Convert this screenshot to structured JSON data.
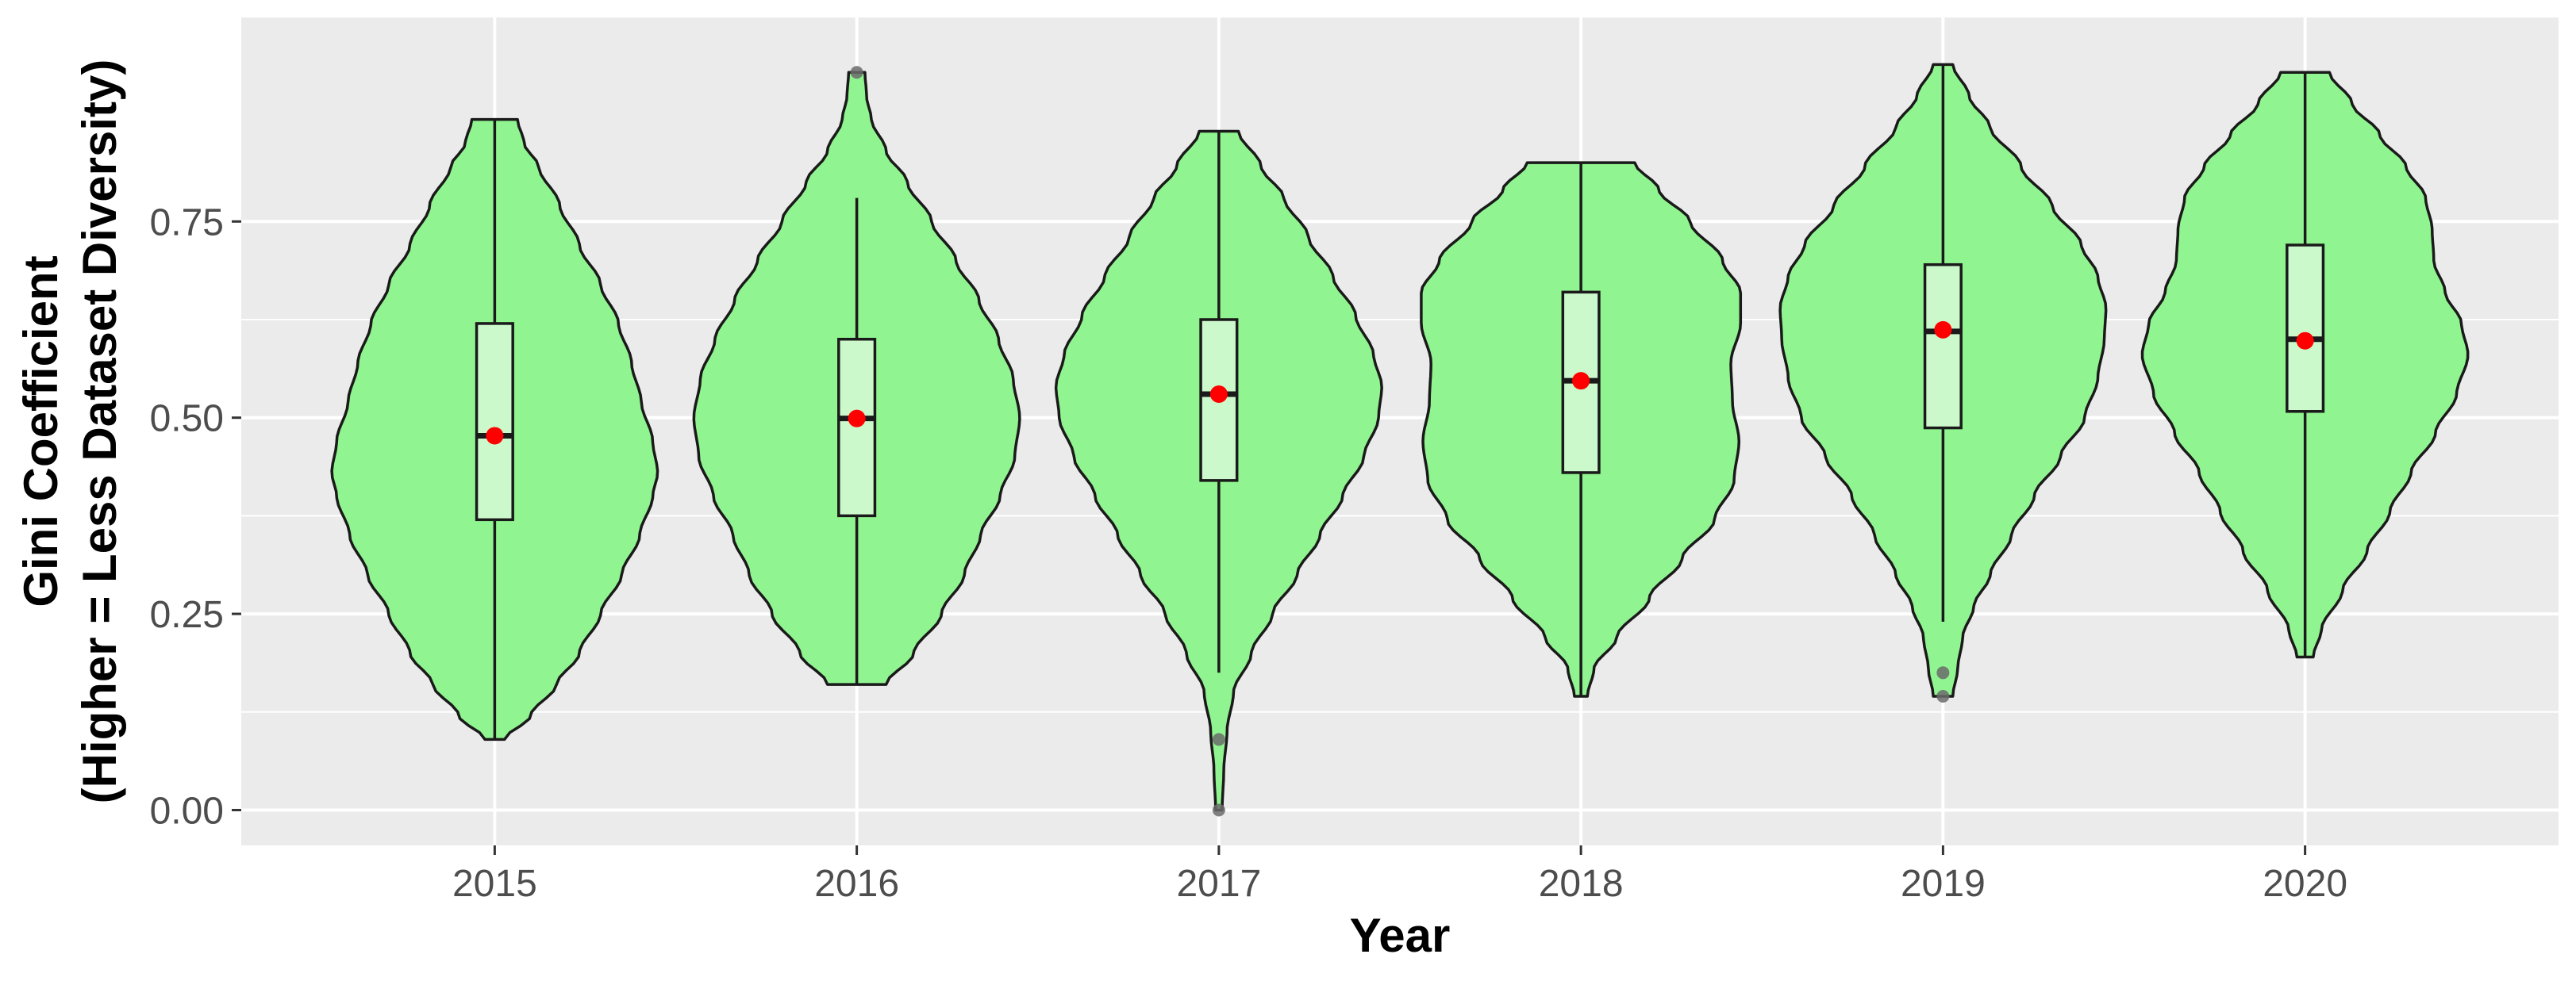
{
  "chart_data": {
    "type": "violin",
    "title": "",
    "xlabel": "Year",
    "ylabel_line1": "Gini Coefficient",
    "ylabel_line2": "(Higher = Less Dataset Diversity)",
    "ylim": [
      -0.045,
      1.01
    ],
    "yticks": [
      0.0,
      0.25,
      0.5,
      0.75
    ],
    "ytick_labels": [
      "0.00",
      "0.25",
      "0.50",
      "0.75"
    ],
    "categories": [
      "2015",
      "2016",
      "2017",
      "2018",
      "2019",
      "2020"
    ],
    "grid": true,
    "legend": "none",
    "colors": {
      "panel": "#ebebeb",
      "grid_major": "#ffffff",
      "violin_fill": "#90f590",
      "violin_stroke": "#1a1a1a",
      "box_fill": "#ccf9cc",
      "mean_point": "#ff0000",
      "outlier": "#6b6b6b"
    },
    "groups": [
      {
        "year": "2015",
        "min": 0.09,
        "max": 0.88,
        "whisker_low": 0.09,
        "q1": 0.37,
        "median": 0.477,
        "q3": 0.62,
        "whisker_high": 0.88,
        "mean": 0.477,
        "outliers": [],
        "density_profile": [
          [
            0.09,
            0.06
          ],
          [
            0.12,
            0.22
          ],
          [
            0.16,
            0.38
          ],
          [
            0.2,
            0.52
          ],
          [
            0.25,
            0.65
          ],
          [
            0.3,
            0.78
          ],
          [
            0.35,
            0.89
          ],
          [
            0.4,
            0.97
          ],
          [
            0.43,
            1.0
          ],
          [
            0.47,
            0.97
          ],
          [
            0.52,
            0.9
          ],
          [
            0.57,
            0.84
          ],
          [
            0.62,
            0.76
          ],
          [
            0.67,
            0.65
          ],
          [
            0.72,
            0.52
          ],
          [
            0.77,
            0.4
          ],
          [
            0.82,
            0.27
          ],
          [
            0.85,
            0.18
          ],
          [
            0.88,
            0.14
          ]
        ]
      },
      {
        "year": "2016",
        "min": 0.16,
        "max": 0.94,
        "whisker_low": 0.16,
        "q1": 0.375,
        "median": 0.499,
        "q3": 0.6,
        "whisker_high": 0.78,
        "mean": 0.499,
        "outliers": [
          0.94
        ],
        "density_profile": [
          [
            0.16,
            0.18
          ],
          [
            0.2,
            0.35
          ],
          [
            0.25,
            0.52
          ],
          [
            0.3,
            0.66
          ],
          [
            0.35,
            0.76
          ],
          [
            0.4,
            0.88
          ],
          [
            0.45,
            0.97
          ],
          [
            0.5,
            1.0
          ],
          [
            0.55,
            0.96
          ],
          [
            0.6,
            0.87
          ],
          [
            0.65,
            0.75
          ],
          [
            0.7,
            0.61
          ],
          [
            0.75,
            0.46
          ],
          [
            0.8,
            0.31
          ],
          [
            0.84,
            0.18
          ],
          [
            0.88,
            0.09
          ],
          [
            0.91,
            0.06
          ],
          [
            0.94,
            0.05
          ]
        ]
      },
      {
        "year": "2017",
        "min": 0.0,
        "max": 0.865,
        "whisker_low": 0.175,
        "q1": 0.42,
        "median": 0.53,
        "q3": 0.625,
        "whisker_high": 0.865,
        "mean": 0.53,
        "outliers": [
          0.09,
          0.0
        ],
        "density_profile": [
          [
            0.0,
            0.02
          ],
          [
            0.05,
            0.03
          ],
          [
            0.1,
            0.05
          ],
          [
            0.15,
            0.09
          ],
          [
            0.2,
            0.2
          ],
          [
            0.25,
            0.33
          ],
          [
            0.3,
            0.48
          ],
          [
            0.35,
            0.62
          ],
          [
            0.4,
            0.76
          ],
          [
            0.45,
            0.89
          ],
          [
            0.5,
            0.98
          ],
          [
            0.54,
            1.0
          ],
          [
            0.58,
            0.95
          ],
          [
            0.63,
            0.84
          ],
          [
            0.68,
            0.7
          ],
          [
            0.73,
            0.55
          ],
          [
            0.78,
            0.4
          ],
          [
            0.82,
            0.26
          ],
          [
            0.865,
            0.12
          ]
        ]
      },
      {
        "year": "2018",
        "min": 0.145,
        "max": 0.825,
        "whisker_low": 0.145,
        "q1": 0.43,
        "median": 0.547,
        "q3": 0.66,
        "whisker_high": 0.825,
        "mean": 0.547,
        "outliers": [],
        "density_profile": [
          [
            0.145,
            0.04
          ],
          [
            0.18,
            0.08
          ],
          [
            0.22,
            0.22
          ],
          [
            0.27,
            0.42
          ],
          [
            0.32,
            0.62
          ],
          [
            0.37,
            0.82
          ],
          [
            0.42,
            0.94
          ],
          [
            0.47,
            0.97
          ],
          [
            0.52,
            0.93
          ],
          [
            0.57,
            0.92
          ],
          [
            0.62,
            0.98
          ],
          [
            0.66,
            0.98
          ],
          [
            0.7,
            0.87
          ],
          [
            0.75,
            0.67
          ],
          [
            0.79,
            0.48
          ],
          [
            0.825,
            0.33
          ]
        ]
      },
      {
        "year": "2019",
        "min": 0.145,
        "max": 0.95,
        "whisker_low": 0.24,
        "q1": 0.487,
        "median": 0.61,
        "q3": 0.695,
        "whisker_high": 0.95,
        "mean": 0.612,
        "outliers": [
          0.175,
          0.145
        ],
        "density_profile": [
          [
            0.145,
            0.06
          ],
          [
            0.18,
            0.09
          ],
          [
            0.22,
            0.12
          ],
          [
            0.26,
            0.19
          ],
          [
            0.3,
            0.29
          ],
          [
            0.35,
            0.42
          ],
          [
            0.4,
            0.56
          ],
          [
            0.45,
            0.72
          ],
          [
            0.5,
            0.87
          ],
          [
            0.55,
            0.95
          ],
          [
            0.6,
            0.99
          ],
          [
            0.64,
            1.0
          ],
          [
            0.68,
            0.95
          ],
          [
            0.72,
            0.85
          ],
          [
            0.77,
            0.67
          ],
          [
            0.82,
            0.48
          ],
          [
            0.87,
            0.29
          ],
          [
            0.91,
            0.16
          ],
          [
            0.95,
            0.06
          ]
        ]
      },
      {
        "year": "2020",
        "min": 0.195,
        "max": 0.94,
        "whisker_low": 0.195,
        "q1": 0.508,
        "median": 0.6,
        "q3": 0.72,
        "whisker_high": 0.94,
        "mean": 0.598,
        "outliers": [],
        "density_profile": [
          [
            0.195,
            0.05
          ],
          [
            0.23,
            0.1
          ],
          [
            0.28,
            0.23
          ],
          [
            0.33,
            0.38
          ],
          [
            0.38,
            0.52
          ],
          [
            0.43,
            0.65
          ],
          [
            0.48,
            0.8
          ],
          [
            0.53,
            0.93
          ],
          [
            0.58,
            1.0
          ],
          [
            0.62,
            0.96
          ],
          [
            0.66,
            0.86
          ],
          [
            0.7,
            0.79
          ],
          [
            0.74,
            0.78
          ],
          [
            0.78,
            0.74
          ],
          [
            0.82,
            0.62
          ],
          [
            0.86,
            0.46
          ],
          [
            0.9,
            0.29
          ],
          [
            0.94,
            0.15
          ]
        ]
      }
    ]
  }
}
